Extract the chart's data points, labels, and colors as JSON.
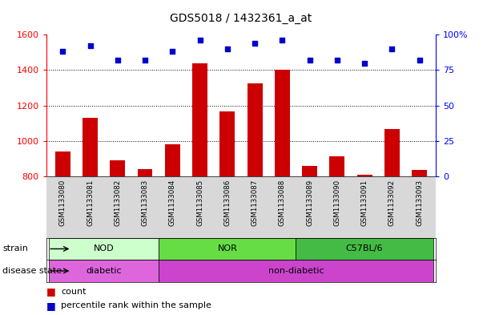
{
  "title": "GDS5018 / 1432361_a_at",
  "samples": [
    "GSM1133080",
    "GSM1133081",
    "GSM1133082",
    "GSM1133083",
    "GSM1133084",
    "GSM1133085",
    "GSM1133086",
    "GSM1133087",
    "GSM1133088",
    "GSM1133089",
    "GSM1133090",
    "GSM1133091",
    "GSM1133092",
    "GSM1133093"
  ],
  "counts": [
    940,
    1130,
    890,
    840,
    980,
    1440,
    1165,
    1325,
    1400,
    860,
    915,
    810,
    1065,
    835
  ],
  "percentiles": [
    88,
    92,
    82,
    82,
    88,
    96,
    90,
    94,
    96,
    82,
    82,
    80,
    90,
    82
  ],
  "ylim_left": [
    800,
    1600
  ],
  "ylim_right": [
    0,
    100
  ],
  "yticks_left": [
    800,
    1000,
    1200,
    1400,
    1600
  ],
  "yticks_right": [
    0,
    25,
    50,
    75,
    100
  ],
  "groups": [
    {
      "label": "NOD",
      "start": 0,
      "end": 4,
      "color": "#ccffcc"
    },
    {
      "label": "NOR",
      "start": 4,
      "end": 9,
      "color": "#66dd44"
    },
    {
      "label": "C57BL/6",
      "start": 9,
      "end": 14,
      "color": "#44bb44"
    }
  ],
  "disease_states": [
    {
      "label": "diabetic",
      "start": 0,
      "end": 4,
      "color": "#dd66dd"
    },
    {
      "label": "non-diabetic",
      "start": 4,
      "end": 14,
      "color": "#cc44cc"
    }
  ],
  "bar_color": "#cc0000",
  "dot_color": "#0000cc",
  "strain_label": "strain",
  "disease_label": "disease state",
  "legend_count": "count",
  "legend_percentile": "percentile rank within the sample",
  "label_bg_color": "#d8d8d8",
  "grid_lines": [
    1000,
    1200,
    1400
  ],
  "grid_color": "#888888"
}
